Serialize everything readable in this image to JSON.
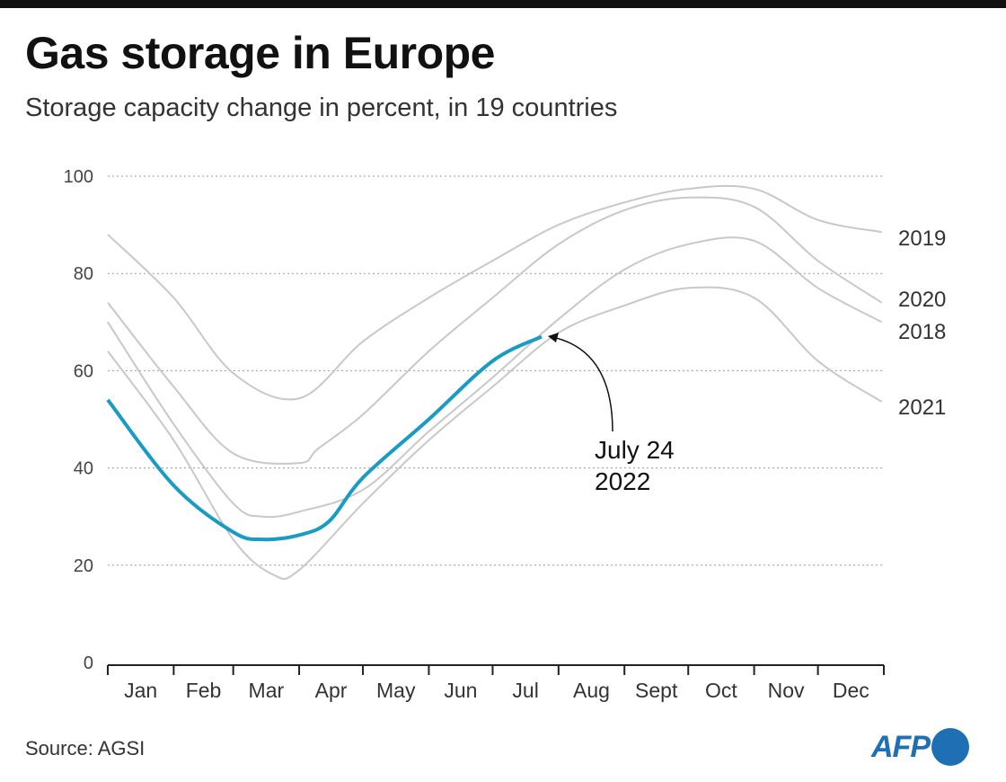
{
  "header": {
    "title": "Gas storage in Europe",
    "subtitle": "Storage capacity change in percent, in 19 countries"
  },
  "footer": {
    "source": "Source: AGSI",
    "logo": "AFP"
  },
  "chart_data": {
    "type": "line",
    "title": "Gas storage in Europe",
    "subtitle": "Storage capacity change in percent, in 19 countries",
    "xlabel": "",
    "ylabel": "",
    "ylim": [
      0,
      100
    ],
    "yticks": [
      0,
      20,
      40,
      60,
      80,
      100
    ],
    "xtick_labels": [
      "Jan",
      "Feb",
      "Mar",
      "Apr",
      "May",
      "Jun",
      "Jul",
      "Aug",
      "Sept",
      "Oct",
      "Nov",
      "Dec"
    ],
    "grid": "horizontal dotted",
    "colors": {
      "highlight": "#1a9bc4",
      "other": "#c8c8c8"
    },
    "series": [
      {
        "name": "2019",
        "x": [
          "01-01",
          "02-01",
          "03-01",
          "04-01",
          "05-01",
          "06-01",
          "07-01",
          "08-01",
          "09-01",
          "10-01",
          "11-01",
          "12-01",
          "12-31"
        ],
        "values": [
          88,
          75,
          59.5,
          54.3,
          66,
          75,
          82.6,
          90,
          94.6,
          97.4,
          97.4,
          91,
          88.5
        ]
      },
      {
        "name": "2020",
        "x": [
          "01-01",
          "02-01",
          "03-01",
          "04-01",
          "04-10",
          "05-01",
          "06-01",
          "07-01",
          "08-01",
          "09-01",
          "10-01",
          "11-01",
          "12-01",
          "12-31"
        ],
        "values": [
          74,
          56.7,
          43,
          41,
          44,
          51,
          64,
          75,
          86,
          93,
          95.6,
          93.7,
          82.6,
          74
        ]
      },
      {
        "name": "2018",
        "x": [
          "01-01",
          "02-01",
          "03-01",
          "03-15",
          "04-01",
          "05-01",
          "06-01",
          "07-01",
          "08-01",
          "09-01",
          "10-01",
          "11-01",
          "12-01",
          "12-31"
        ],
        "values": [
          70,
          49,
          32.7,
          30,
          31,
          35.5,
          47.5,
          58.6,
          70.6,
          80.8,
          86,
          86.7,
          77,
          70
        ]
      },
      {
        "name": "2021",
        "x": [
          "01-01",
          "02-01",
          "03-01",
          "03-20",
          "04-01",
          "05-01",
          "06-01",
          "07-01",
          "08-01",
          "09-01",
          "10-01",
          "11-01",
          "12-01",
          "12-31"
        ],
        "values": [
          64,
          45.7,
          25.3,
          18,
          19,
          32.7,
          45.7,
          56.7,
          67.8,
          73.4,
          77,
          75,
          62,
          53.6
        ]
      },
      {
        "name": "2022",
        "x": [
          "01-01",
          "02-01",
          "03-01",
          "03-15",
          "04-01",
          "04-15",
          "05-01",
          "06-01",
          "07-01",
          "07-24"
        ],
        "values": [
          54,
          36.4,
          26.8,
          25.3,
          26.2,
          29,
          38,
          50,
          62,
          67
        ]
      }
    ],
    "annotation": {
      "line1": "July 24",
      "line2": "2022"
    }
  }
}
